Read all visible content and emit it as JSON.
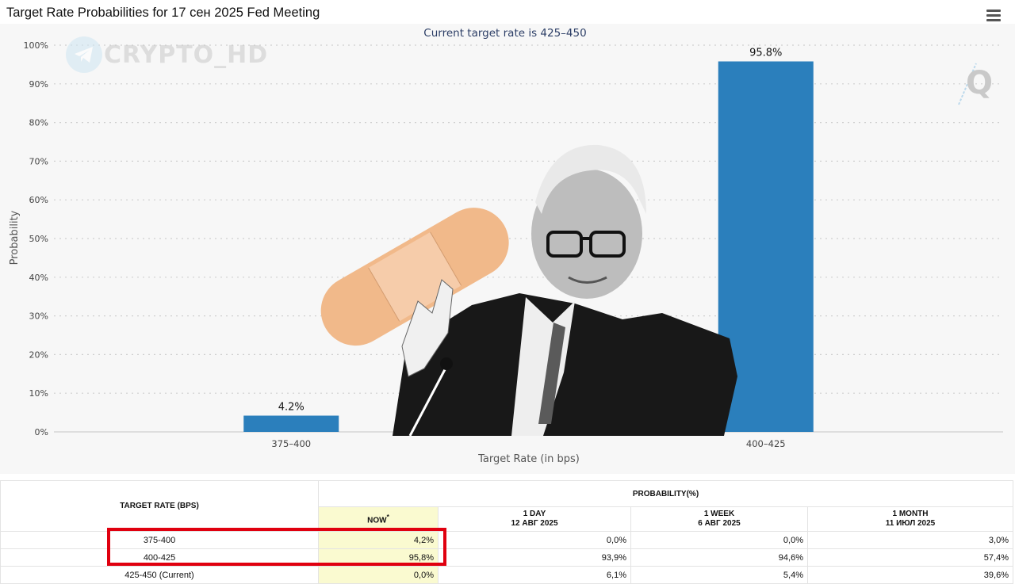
{
  "page": {
    "title": "Target Rate Probabilities for 17 сен 2025 Fed Meeting"
  },
  "chart_data": {
    "type": "bar",
    "subtitle": "Current target rate is 425–450",
    "categories": [
      "375–400",
      "400–425"
    ],
    "values": [
      4.2,
      95.8
    ],
    "data_labels": [
      "4.2%",
      "95.8%"
    ],
    "xlabel": "Target Rate (in bps)",
    "ylabel": "Probability",
    "ylim": [
      0,
      100
    ],
    "yticks": [
      "0%",
      "10%",
      "20%",
      "30%",
      "40%",
      "50%",
      "60%",
      "70%",
      "80%",
      "90%",
      "100%"
    ],
    "grid": true,
    "bar_color": "#2b7fbc"
  },
  "watermark": {
    "text": "CRYPTO_HD",
    "logo_letter": "Q"
  },
  "table": {
    "rate_header": "TARGET RATE (BPS)",
    "prob_header": "PROBABILITY(%)",
    "columns": [
      {
        "line1": "NOW",
        "marker": "*"
      },
      {
        "line1": "1 DAY",
        "line2": "12 АВГ 2025"
      },
      {
        "line1": "1 WEEK",
        "line2": "6 АВГ 2025"
      },
      {
        "line1": "1 MONTH",
        "line2": "11 ИЮЛ 2025"
      }
    ],
    "rows": [
      {
        "rate": "375-400",
        "now": "4,2%",
        "day": "0,0%",
        "week": "0,0%",
        "month": "3,0%"
      },
      {
        "rate": "400-425",
        "now": "95,8%",
        "day": "93,9%",
        "week": "94,6%",
        "month": "57,4%"
      },
      {
        "rate": "425-450 (Current)",
        "now": "0,0%",
        "day": "6,1%",
        "week": "5,4%",
        "month": "39,6%"
      }
    ]
  }
}
